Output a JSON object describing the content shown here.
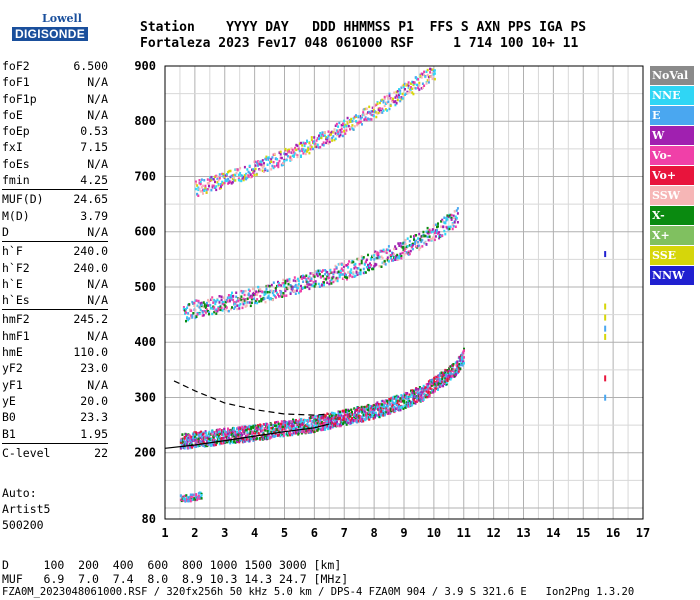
{
  "logo": {
    "top": "Lowell",
    "main": "DIGISONDE"
  },
  "header": {
    "line1": "Station    YYYY DAY   DDD HHMMSS P1  FFS S AXN PPS IGA PS",
    "line2": "Fortaleza 2023 Fev17 048 061000 RSF     1 714 100 10+ 11"
  },
  "params": [
    [
      [
        "foF2",
        "6.500"
      ],
      [
        "foF1",
        "N/A"
      ],
      [
        "foF1p",
        "N/A"
      ],
      [
        "foE",
        "N/A"
      ],
      [
        "foEp",
        "0.53"
      ],
      [
        "fxI",
        "7.15"
      ],
      [
        "foEs",
        "N/A"
      ],
      [
        "fmin",
        "4.25"
      ]
    ],
    [
      [
        "MUF(D)",
        "24.65"
      ],
      [
        "M(D)",
        "3.79"
      ],
      [
        "D",
        "N/A"
      ]
    ],
    [
      [
        "h`F",
        "240.0"
      ],
      [
        "h`F2",
        "240.0"
      ],
      [
        "h`E",
        "N/A"
      ],
      [
        "h`Es",
        "N/A"
      ]
    ],
    [
      [
        "hmF2",
        "245.2"
      ],
      [
        "hmF1",
        "N/A"
      ],
      [
        "hmE",
        "110.0"
      ],
      [
        "yF2",
        "23.0"
      ],
      [
        "yF1",
        "N/A"
      ],
      [
        "yE",
        "20.0"
      ],
      [
        "B0",
        "23.3"
      ],
      [
        "B1",
        "1.95"
      ]
    ],
    [
      [
        "C-level",
        "22"
      ]
    ]
  ],
  "auto": {
    "line1": "Auto:",
    "line2": "Artist5",
    "line3": "500200"
  },
  "footer": {
    "d_line": "D     100  200  400  600  800 1000 1500 3000 [km]",
    "muf_line": "MUF   6.9  7.0  7.4  8.0  8.9 10.3 14.3 24.7 [MHz]",
    "file_line": "FZA0M_2023048061000.RSF / 320fx256h 50 kHz 5.0 km / DPS-4 FZA0M 904 / 3.9 S 321.6 E   Ion2Png 1.3.20"
  },
  "legend": [
    {
      "label": "NoVal",
      "color": "#8a8a8a"
    },
    {
      "label": "NNE",
      "color": "#2fd6f5"
    },
    {
      "label": "E",
      "color": "#4aa7f0"
    },
    {
      "label": "W",
      "color": "#a020b0"
    },
    {
      "label": "Vo-",
      "color": "#f040a8"
    },
    {
      "label": "Vo+",
      "color": "#e8143c"
    },
    {
      "label": "SSW",
      "color": "#f6b6b6"
    },
    {
      "label": "X-",
      "color": "#0a8a10"
    },
    {
      "label": "X+",
      "color": "#80c060"
    },
    {
      "label": "SSE",
      "color": "#d6d60a"
    },
    {
      "label": "NNW",
      "color": "#2020d0"
    }
  ],
  "chart_data": {
    "type": "scatter",
    "title": "",
    "xlabel": "",
    "ylabel": "",
    "xlim": [
      1,
      17
    ],
    "ylim": [
      80,
      900
    ],
    "xticks": [
      1,
      2,
      3,
      4,
      5,
      6,
      7,
      8,
      9,
      10,
      11,
      12,
      13,
      14,
      15,
      16,
      17
    ],
    "yticks": [
      80,
      200,
      300,
      400,
      500,
      600,
      700,
      800,
      900
    ],
    "grid": true,
    "traces": [
      {
        "name": "O-trace F2",
        "x": [
          1.5,
          2.0,
          3.0,
          4.0,
          5.0,
          6.0,
          7.0,
          8.0,
          9.0,
          9.6,
          10.0,
          10.4,
          10.8,
          11.0
        ],
        "y": [
          222,
          226,
          232,
          238,
          246,
          254,
          266,
          278,
          296,
          310,
          325,
          340,
          362,
          380
        ]
      },
      {
        "name": "2nd hop",
        "x": [
          1.6,
          2.0,
          3.0,
          4.0,
          5.0,
          6.0,
          7.0,
          8.0,
          9.0,
          10.0,
          10.8
        ],
        "y": [
          455,
          462,
          473,
          486,
          500,
          515,
          531,
          550,
          572,
          600,
          630
        ]
      },
      {
        "name": "3rd hop",
        "x": [
          2.0,
          3.0,
          4.0,
          5.0,
          6.0,
          7.0,
          8.0,
          9.0,
          10.0
        ],
        "y": [
          680,
          696,
          716,
          738,
          763,
          792,
          822,
          856,
          890
        ]
      },
      {
        "name": "E/low echoes",
        "x": [
          1.5,
          1.8,
          2.0,
          2.2
        ],
        "y": [
          120,
          120,
          122,
          125
        ]
      }
    ],
    "profile": {
      "solid": {
        "x": [
          1.0,
          2.0,
          3.0,
          4.0,
          5.0,
          6.0,
          6.5
        ],
        "y": [
          208,
          214,
          222,
          230,
          238,
          245,
          252
        ]
      },
      "dashed": {
        "x": [
          1.3,
          2.0,
          3.0,
          4.0,
          5.0,
          6.0,
          6.5
        ],
        "y": [
          330,
          312,
          290,
          278,
          270,
          268,
          270
        ]
      }
    }
  }
}
